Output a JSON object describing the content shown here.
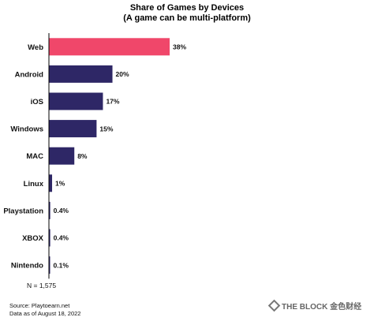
{
  "chart_data": {
    "type": "bar",
    "orientation": "horizontal",
    "title": "Share of Games by Devices",
    "subtitle": "(A game can be multi-platform)",
    "categories": [
      "Web",
      "Android",
      "iOS",
      "Windows",
      "MAC",
      "Linux",
      "Playstation",
      "XBOX",
      "Nintendo"
    ],
    "values": [
      38,
      20,
      17,
      15,
      8,
      1,
      0.4,
      0.4,
      0.1
    ],
    "value_labels": [
      "38%",
      "20%",
      "17%",
      "15%",
      "8%",
      "1%",
      "0.4%",
      "0.4%",
      "0.1%"
    ],
    "unit": "%",
    "highlight_index": 0,
    "highlight_color": "#f0476a",
    "bar_color": "#2e2766",
    "xlim": [
      0,
      40
    ],
    "grid": false,
    "axis_line_color": "#000000"
  },
  "note": "N = 1,575",
  "source": [
    "Source: Playtoearn.net",
    "Data as of August 18, 2022"
  ],
  "watermark": "THE BLOCK 金色财经"
}
